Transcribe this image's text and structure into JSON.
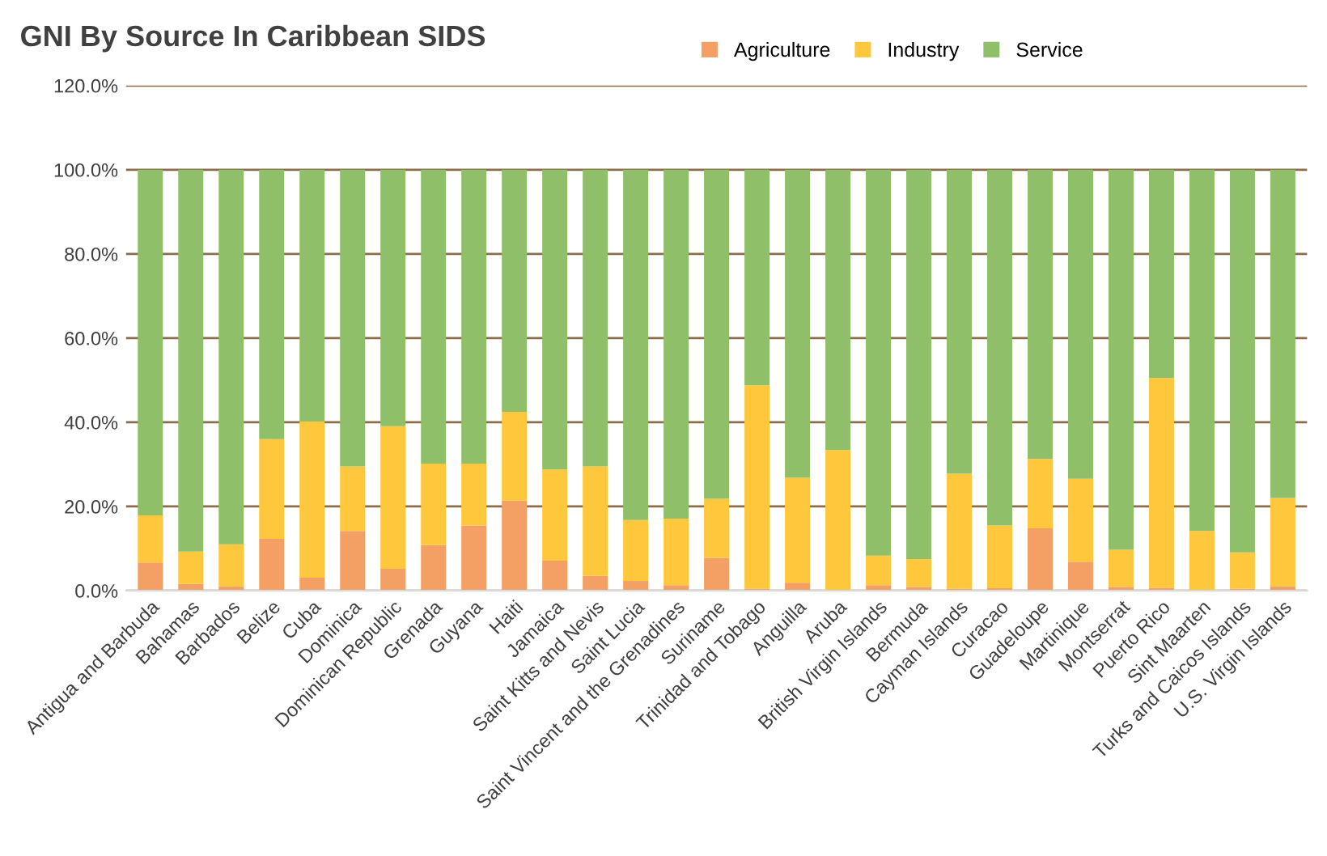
{
  "chart_data": {
    "type": "bar",
    "stacked": true,
    "title": "GNI By Source In Caribbean SIDS",
    "categories": [
      "Antigua and Barbuda",
      "Bahamas",
      "Barbados",
      "Belize",
      "Cuba",
      "Dominica",
      "Dominican Republic",
      "Grenada",
      "Guyana",
      "Haiti",
      "Jamaica",
      "Saint Kitts and Nevis",
      "Saint Lucia",
      "Saint Vincent and the Grenadines",
      "Suriname",
      "Trinidad and Tobago",
      "Anguilla",
      "Aruba",
      "British Virgin Islands",
      "Bermuda",
      "Cayman Islands",
      "Curacao",
      "Guadeloupe",
      "Martinique",
      "Montserrat",
      "Puerto Rico",
      "Sint Maarten",
      "Turks and Caicos Islands",
      "U.S. Virgin Islands"
    ],
    "series": [
      {
        "name": "Agriculture",
        "color": "#f4a064",
        "values": [
          6.7,
          1.6,
          1.0,
          12.3,
          3.1,
          14.2,
          5.2,
          10.8,
          15.5,
          21.4,
          7.1,
          3.5,
          2.3,
          1.3,
          7.8,
          0.5,
          1.9,
          null,
          1.3,
          0.9,
          0.5,
          0.6,
          14.8,
          6.9,
          0.9,
          0.7,
          null,
          0.5,
          1.0
        ]
      },
      {
        "name": "Industry",
        "color": "#ffc83c",
        "values": [
          11.2,
          7.7,
          10.0,
          23.7,
          37.1,
          15.3,
          33.9,
          19.4,
          14.7,
          21.1,
          21.7,
          26.0,
          14.5,
          15.8,
          14.0,
          48.3,
          24.9,
          33.4,
          7.0,
          6.6,
          27.3,
          14.9,
          16.5,
          19.7,
          8.8,
          49.8,
          14.2,
          8.6,
          21.0
        ]
      },
      {
        "name": "Service",
        "color": "#8fbf68",
        "values": [
          82.1,
          90.7,
          89.0,
          64.0,
          59.8,
          70.5,
          60.9,
          69.8,
          69.8,
          57.5,
          71.2,
          70.5,
          83.2,
          82.9,
          78.2,
          51.2,
          73.2,
          66.6,
          91.7,
          92.5,
          72.2,
          84.5,
          68.7,
          73.4,
          90.3,
          49.5,
          85.8,
          90.9,
          78.0
        ]
      }
    ],
    "ylim": [
      0,
      120
    ],
    "yticks": [
      {
        "value": 0,
        "label": "0.0%"
      },
      {
        "value": 20,
        "label": "20.0%"
      },
      {
        "value": 40,
        "label": "40.0%"
      },
      {
        "value": 60,
        "label": "60.0%"
      },
      {
        "value": 80,
        "label": "80.0%"
      },
      {
        "value": 100,
        "label": "100.0%"
      },
      {
        "value": 120,
        "label": "120.0%"
      }
    ],
    "grid": "y",
    "legend": "top"
  }
}
